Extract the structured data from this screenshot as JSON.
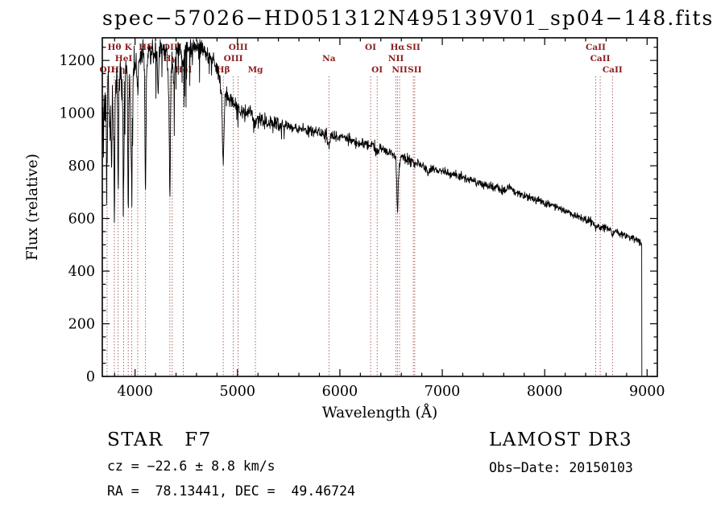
{
  "title": "spec−57026−HD051312N495139V01_sp04−148.fits",
  "footer": {
    "class_label": "STAR   F7",
    "survey": "LAMOST DR3",
    "cz": "cz = −22.6 ± 8.8 km/s",
    "obs_date": "Obs−Date: 20150103",
    "coords": "RA =  78.13441, DEC =  49.46724"
  },
  "chart_data": {
    "type": "line",
    "title": "spec−57026−HD051312N495139V01_sp04−148.fits",
    "xlabel": "Wavelength (Å)",
    "ylabel": "Flux (relative)",
    "xlim": [
      3680,
      9100
    ],
    "ylim": [
      0,
      1286
    ],
    "xticks": [
      4000,
      5000,
      6000,
      7000,
      8000,
      9000
    ],
    "yticks": [
      0,
      200,
      400,
      600,
      800,
      1000,
      1200
    ],
    "x_minor_step": 200,
    "y_minor_step": 50,
    "grid": false,
    "background": "#ffffff",
    "line_color": "#000000",
    "marker_color": "#8b2020",
    "line_markers": [
      {
        "wavelength": 3727,
        "label": "OII",
        "row": 3
      },
      {
        "wavelength": 3798,
        "label": "Hθ",
        "row": 1
      },
      {
        "wavelength": 3835,
        "label": "Hη",
        "row": 3
      },
      {
        "wavelength": 3889,
        "label": "HeI",
        "row": 2
      },
      {
        "wavelength": 3933,
        "label": "K",
        "row": 1
      },
      {
        "wavelength": 3968,
        "label": "",
        "row": 1
      },
      {
        "wavelength": 4026,
        "label": "",
        "row": 2
      },
      {
        "wavelength": 4102,
        "label": "Hδ",
        "row": 1
      },
      {
        "wavelength": 4340,
        "label": "Hγ",
        "row": 2
      },
      {
        "wavelength": 4363,
        "label": "OIII",
        "row": 1
      },
      {
        "wavelength": 4471,
        "label": "HeI",
        "row": 3
      },
      {
        "wavelength": 4861,
        "label": "Hβ",
        "row": 3
      },
      {
        "wavelength": 4959,
        "label": "OIII",
        "row": 2
      },
      {
        "wavelength": 5007,
        "label": "OIII",
        "row": 1
      },
      {
        "wavelength": 5175,
        "label": "Mg",
        "row": 3
      },
      {
        "wavelength": 5893,
        "label": "Na",
        "row": 2
      },
      {
        "wavelength": 6300,
        "label": "OI",
        "row": 1
      },
      {
        "wavelength": 6364,
        "label": "OI",
        "row": 3
      },
      {
        "wavelength": 6548,
        "label": "NII",
        "row": 2
      },
      {
        "wavelength": 6563,
        "label": "Hα",
        "row": 1
      },
      {
        "wavelength": 6583,
        "label": "NII",
        "row": 3
      },
      {
        "wavelength": 6717,
        "label": "SII",
        "row": 1
      },
      {
        "wavelength": 6731,
        "label": "SII",
        "row": 3
      },
      {
        "wavelength": 8498,
        "label": "CaII",
        "row": 1
      },
      {
        "wavelength": 8542,
        "label": "CaII",
        "row": 2
      },
      {
        "wavelength": 8662,
        "label": "CaII",
        "row": 3
      }
    ],
    "noise_sigma": [
      [
        3680,
        30
      ],
      [
        4050,
        22
      ],
      [
        4400,
        18
      ],
      [
        4900,
        14
      ],
      [
        5400,
        11
      ],
      [
        6000,
        10
      ],
      [
        6700,
        8
      ],
      [
        7600,
        7
      ],
      [
        8940,
        7
      ]
    ],
    "spectrum_anchors": [
      [
        3680,
        900
      ],
      [
        3686,
        1020
      ],
      [
        3692,
        870
      ],
      [
        3698,
        1080
      ],
      [
        3704,
        950
      ],
      [
        3710,
        1130
      ],
      [
        3716,
        1000
      ],
      [
        3722,
        880
      ],
      [
        3727,
        800
      ],
      [
        3733,
        1100
      ],
      [
        3740,
        1150
      ],
      [
        3748,
        980
      ],
      [
        3755,
        880
      ],
      [
        3762,
        1060
      ],
      [
        3770,
        740
      ],
      [
        3778,
        1080
      ],
      [
        3786,
        1010
      ],
      [
        3792,
        900
      ],
      [
        3798,
        580
      ],
      [
        3806,
        1050
      ],
      [
        3814,
        1130
      ],
      [
        3822,
        1160
      ],
      [
        3828,
        1060
      ],
      [
        3835,
        640
      ],
      [
        3843,
        1090
      ],
      [
        3852,
        1150
      ],
      [
        3861,
        1180
      ],
      [
        3870,
        1090
      ],
      [
        3880,
        1000
      ],
      [
        3889,
        700
      ],
      [
        3897,
        1120
      ],
      [
        3906,
        1170
      ],
      [
        3915,
        1195
      ],
      [
        3924,
        1100
      ],
      [
        3933,
        530
      ],
      [
        3941,
        1080
      ],
      [
        3948,
        1140
      ],
      [
        3955,
        980
      ],
      [
        3962,
        850
      ],
      [
        3968,
        640
      ],
      [
        3975,
        1060
      ],
      [
        3983,
        1150
      ],
      [
        3991,
        1190
      ],
      [
        4000,
        1195
      ],
      [
        4010,
        1215
      ],
      [
        4018,
        1160
      ],
      [
        4026,
        1090
      ],
      [
        4036,
        1190
      ],
      [
        4046,
        1215
      ],
      [
        4056,
        1230
      ],
      [
        4068,
        1220
      ],
      [
        4080,
        1235
      ],
      [
        4092,
        1150
      ],
      [
        4102,
        650
      ],
      [
        4112,
        1130
      ],
      [
        4122,
        1200
      ],
      [
        4134,
        1230
      ],
      [
        4146,
        1245
      ],
      [
        4158,
        1215
      ],
      [
        4170,
        1235
      ],
      [
        4182,
        1245
      ],
      [
        4194,
        1230
      ],
      [
        4206,
        1240
      ],
      [
        4216,
        1200
      ],
      [
        4226,
        1070
      ],
      [
        4236,
        1220
      ],
      [
        4248,
        1250
      ],
      [
        4260,
        1255
      ],
      [
        4272,
        1240
      ],
      [
        4284,
        1235
      ],
      [
        4296,
        1225
      ],
      [
        4308,
        1215
      ],
      [
        4320,
        1160
      ],
      [
        4330,
        1050
      ],
      [
        4340,
        650
      ],
      [
        4350,
        1120
      ],
      [
        4360,
        1190
      ],
      [
        4372,
        1160
      ],
      [
        4383,
        1100
      ],
      [
        4394,
        1220
      ],
      [
        4406,
        1245
      ],
      [
        4418,
        1255
      ],
      [
        4430,
        1245
      ],
      [
        4442,
        1235
      ],
      [
        4454,
        1225
      ],
      [
        4464,
        1200
      ],
      [
        4471,
        1175
      ],
      [
        4480,
        1220
      ],
      [
        4492,
        1245
      ],
      [
        4506,
        1255
      ],
      [
        4520,
        1250
      ],
      [
        4535,
        1245
      ],
      [
        4550,
        1250
      ],
      [
        4565,
        1255
      ],
      [
        4580,
        1260
      ],
      [
        4595,
        1252
      ],
      [
        4610,
        1245
      ],
      [
        4625,
        1250
      ],
      [
        4640,
        1248
      ],
      [
        4655,
        1252
      ],
      [
        4670,
        1242
      ],
      [
        4685,
        1238
      ],
      [
        4700,
        1232
      ],
      [
        4713,
        1200
      ],
      [
        4726,
        1225
      ],
      [
        4740,
        1215
      ],
      [
        4755,
        1205
      ],
      [
        4770,
        1195
      ],
      [
        4785,
        1185
      ],
      [
        4800,
        1172
      ],
      [
        4815,
        1150
      ],
      [
        4830,
        1120
      ],
      [
        4845,
        1050
      ],
      [
        4861,
        775
      ],
      [
        4876,
        1060
      ],
      [
        4892,
        1070
      ],
      [
        4908,
        1062
      ],
      [
        4924,
        1052
      ],
      [
        4940,
        1044
      ],
      [
        4959,
        1038
      ],
      [
        4975,
        1032
      ],
      [
        4991,
        1026
      ],
      [
        5007,
        1020
      ],
      [
        5023,
        1016
      ],
      [
        5040,
        1012
      ],
      [
        5060,
        1008
      ],
      [
        5080,
        1003
      ],
      [
        5100,
        998
      ],
      [
        5120,
        993
      ],
      [
        5140,
        987
      ],
      [
        5160,
        980
      ],
      [
        5175,
        962
      ],
      [
        5192,
        978
      ],
      [
        5210,
        976
      ],
      [
        5230,
        974
      ],
      [
        5252,
        972
      ],
      [
        5275,
        969
      ],
      [
        5300,
        967
      ],
      [
        5330,
        964
      ],
      [
        5360,
        961
      ],
      [
        5392,
        958
      ],
      [
        5425,
        956
      ],
      [
        5458,
        954
      ],
      [
        5492,
        952
      ],
      [
        5526,
        949
      ],
      [
        5560,
        946
      ],
      [
        5595,
        943
      ],
      [
        5630,
        940
      ],
      [
        5665,
        937
      ],
      [
        5700,
        934
      ],
      [
        5735,
        931
      ],
      [
        5770,
        928
      ],
      [
        5805,
        925
      ],
      [
        5840,
        921
      ],
      [
        5870,
        918
      ],
      [
        5893,
        862
      ],
      [
        5915,
        915
      ],
      [
        5940,
        913
      ],
      [
        5970,
        911
      ],
      [
        6000,
        909
      ],
      [
        6035,
        905
      ],
      [
        6070,
        901
      ],
      [
        6105,
        898
      ],
      [
        6140,
        894
      ],
      [
        6175,
        890
      ],
      [
        6210,
        886
      ],
      [
        6245,
        883
      ],
      [
        6280,
        880
      ],
      [
        6300,
        876
      ],
      [
        6320,
        874
      ],
      [
        6340,
        871
      ],
      [
        6364,
        856
      ],
      [
        6390,
        866
      ],
      [
        6420,
        862
      ],
      [
        6450,
        858
      ],
      [
        6480,
        854
      ],
      [
        6510,
        850
      ],
      [
        6535,
        840
      ],
      [
        6548,
        820
      ],
      [
        6563,
        610
      ],
      [
        6578,
        812
      ],
      [
        6596,
        832
      ],
      [
        6620,
        830
      ],
      [
        6650,
        826
      ],
      [
        6680,
        822
      ],
      [
        6710,
        815
      ],
      [
        6731,
        803
      ],
      [
        6755,
        810
      ],
      [
        6785,
        806
      ],
      [
        6815,
        801
      ],
      [
        6845,
        794
      ],
      [
        6867,
        770
      ],
      [
        6885,
        791
      ],
      [
        6905,
        788
      ],
      [
        6930,
        786
      ],
      [
        6955,
        784
      ],
      [
        6980,
        782
      ],
      [
        7005,
        780
      ],
      [
        7035,
        776
      ],
      [
        7065,
        772
      ],
      [
        7095,
        768
      ],
      [
        7125,
        765
      ],
      [
        7160,
        760
      ],
      [
        7195,
        756
      ],
      [
        7230,
        752
      ],
      [
        7265,
        747
      ],
      [
        7300,
        743
      ],
      [
        7335,
        739
      ],
      [
        7370,
        735
      ],
      [
        7405,
        730
      ],
      [
        7440,
        726
      ],
      [
        7475,
        722
      ],
      [
        7510,
        718
      ],
      [
        7545,
        713
      ],
      [
        7580,
        709
      ],
      [
        7610,
        706
      ],
      [
        7640,
        716
      ],
      [
        7665,
        722
      ],
      [
        7685,
        708
      ],
      [
        7710,
        698
      ],
      [
        7740,
        694
      ],
      [
        7775,
        689
      ],
      [
        7810,
        685
      ],
      [
        7845,
        681
      ],
      [
        7880,
        676
      ],
      [
        7915,
        672
      ],
      [
        7950,
        667
      ],
      [
        7985,
        662
      ],
      [
        8020,
        656
      ],
      [
        8055,
        651
      ],
      [
        8090,
        645
      ],
      [
        8125,
        639
      ],
      [
        8160,
        633
      ],
      [
        8195,
        628
      ],
      [
        8230,
        622
      ],
      [
        8265,
        617
      ],
      [
        8300,
        611
      ],
      [
        8335,
        606
      ],
      [
        8370,
        600
      ],
      [
        8405,
        595
      ],
      [
        8440,
        589
      ],
      [
        8470,
        585
      ],
      [
        8498,
        560
      ],
      [
        8520,
        577
      ],
      [
        8542,
        555
      ],
      [
        8565,
        571
      ],
      [
        8590,
        567
      ],
      [
        8620,
        562
      ],
      [
        8645,
        557
      ],
      [
        8662,
        540
      ],
      [
        8685,
        552
      ],
      [
        8710,
        548
      ],
      [
        8740,
        543
      ],
      [
        8770,
        539
      ],
      [
        8800,
        534
      ],
      [
        8830,
        529
      ],
      [
        8860,
        524
      ],
      [
        8890,
        519
      ],
      [
        8915,
        515
      ],
      [
        8940,
        510
      ]
    ]
  }
}
